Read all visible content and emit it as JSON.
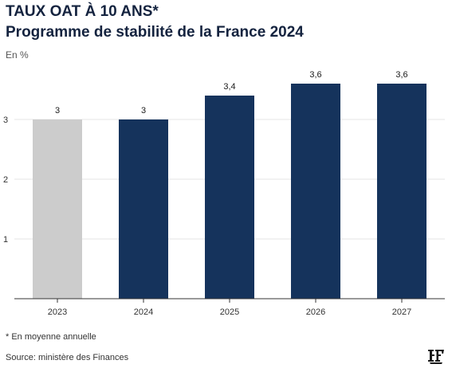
{
  "header": {
    "title": "TAUX OAT À 10 ANS*",
    "subtitle": "Programme de stabilité de la France 2024",
    "unit": "En %"
  },
  "footer": {
    "footnote": "* En moyenne annuelle",
    "source": "Source: ministère des Finances"
  },
  "colors": {
    "actual": "#cccccc",
    "forecast": "#15335c",
    "grid": "#e6e6e6",
    "axis": "#333333"
  },
  "chart_data": {
    "type": "bar",
    "categories": [
      "2023",
      "2024",
      "2025",
      "2026",
      "2027"
    ],
    "values": [
      3,
      3,
      3.4,
      3.6,
      3.6
    ],
    "value_labels": [
      "3",
      "3",
      "3,4",
      "3,6",
      "3,6"
    ],
    "bar_colors": [
      "#cccccc",
      "#15335c",
      "#15335c",
      "#15335c",
      "#15335c"
    ],
    "yticks": [
      1,
      2,
      3
    ],
    "ylim": [
      0,
      3.6
    ],
    "grid": true,
    "xlabel": "",
    "ylabel": ""
  }
}
